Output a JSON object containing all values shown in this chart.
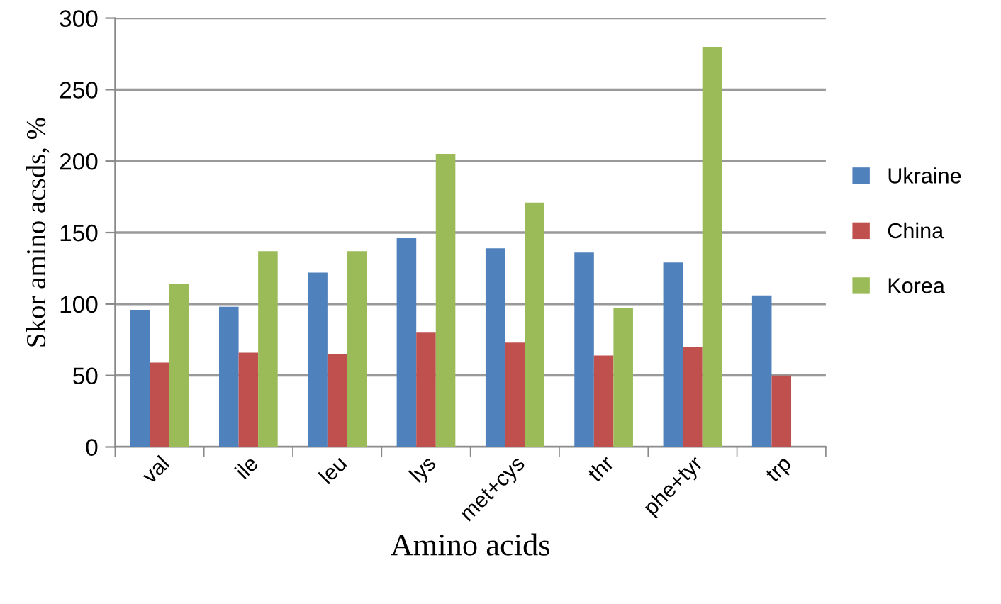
{
  "chart_data": {
    "type": "bar",
    "xlabel": "Amino acids",
    "ylabel": "Skor amino acsds, %",
    "categories": [
      "val",
      "ile",
      "leu",
      "lys",
      "met+cys",
      "thr",
      "phe+tyr",
      "trp"
    ],
    "series": [
      {
        "name": "Ukraine",
        "color": "#4f81bd",
        "values": [
          96,
          98,
          122,
          146,
          139,
          136,
          129,
          106
        ]
      },
      {
        "name": "China",
        "color": "#c0504d",
        "values": [
          59,
          66,
          65,
          80,
          73,
          64,
          70,
          50
        ]
      },
      {
        "name": "Korea",
        "color": "#9bbb59",
        "values": [
          114,
          137,
          137,
          205,
          171,
          97,
          280,
          null
        ]
      }
    ],
    "ylim": [
      0,
      300
    ],
    "yticks": [
      0,
      50,
      100,
      150,
      200,
      250,
      300
    ],
    "grid": "y",
    "legend": "right"
  }
}
